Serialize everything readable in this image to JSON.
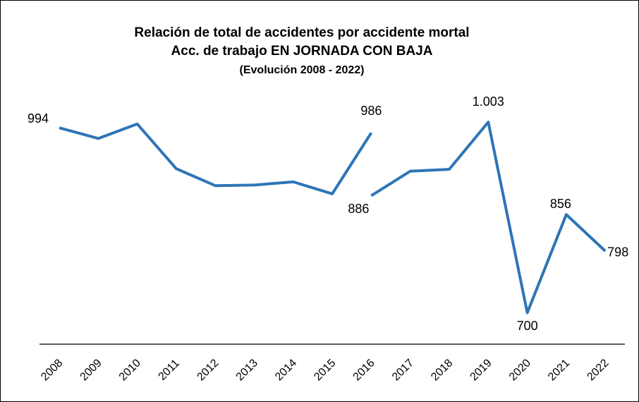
{
  "chart_data": {
    "type": "line",
    "title": [
      "Relación de total de accidentes por accidente mortal",
      "Acc. de trabajo EN JORNADA CON BAJA",
      "(Evolución 2008 - 2022)"
    ],
    "categories": [
      "2008",
      "2009",
      "2010",
      "2011",
      "2012",
      "2013",
      "2014",
      "2015",
      "2016",
      "2017",
      "2018",
      "2019",
      "2020",
      "2021",
      "2022"
    ],
    "series": [
      {
        "color": "#2e75b6",
        "values": [
          994,
          977,
          1000,
          929,
          902,
          903,
          908,
          889,
          986,
          null,
          null,
          null,
          null,
          null,
          null
        ],
        "value_labels": [
          "994",
          null,
          null,
          null,
          null,
          null,
          null,
          null,
          "986",
          null,
          null,
          null,
          null,
          null,
          null
        ]
      },
      {
        "color": "#2e75b6",
        "values": [
          null,
          null,
          null,
          null,
          null,
          null,
          null,
          null,
          886,
          925,
          928,
          1003,
          700,
          856,
          798
        ],
        "value_labels": [
          null,
          null,
          null,
          null,
          null,
          null,
          null,
          null,
          "886",
          null,
          null,
          "1.003",
          "700",
          "856",
          "798"
        ]
      }
    ],
    "ylim": [
      650,
      1150
    ]
  }
}
